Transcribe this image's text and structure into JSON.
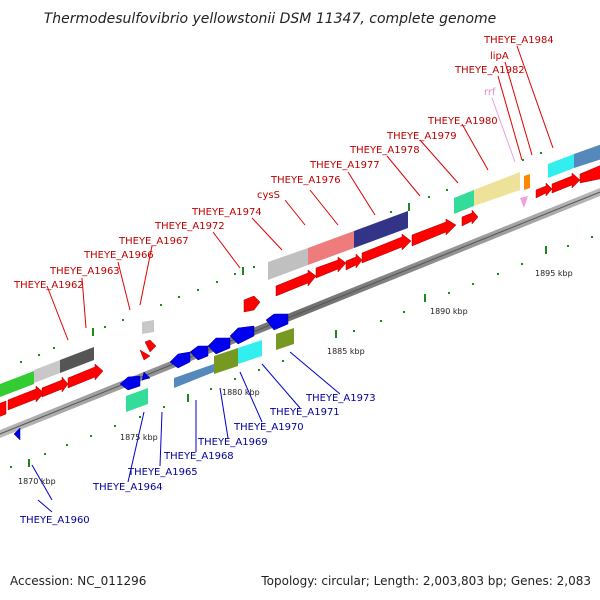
{
  "title": "Thermodesulfovibrio yellowstonii DSM 11347, complete genome",
  "accession_text": "Accession: NC_011296",
  "summary_text": "Topology: circular; Length: 2,003,803 bp; Genes: 2,083",
  "ticks": [
    {
      "label": "1870 kbp"
    },
    {
      "label": "1875 kbp"
    },
    {
      "label": "1880 kbp"
    },
    {
      "label": "1885 kbp"
    },
    {
      "label": "1890 kbp"
    },
    {
      "label": "1895 kbp"
    }
  ],
  "top_labels": [
    "THEYE_A1962",
    "THEYE_A1963",
    "THEYE_A1966",
    "THEYE_A1967",
    "THEYE_A1972",
    "THEYE_A1974",
    "cysS",
    "THEYE_A1976",
    "THEYE_A1977",
    "THEYE_A1978",
    "THEYE_A1979",
    "THEYE_A1980",
    "rrf",
    "THEYE_A1982",
    "lipA",
    "THEYE_A1984"
  ],
  "bottom_labels": [
    "THEYE_A1960",
    "THEYE_A1964",
    "THEYE_A1965",
    "THEYE_A1968",
    "THEYE_A1969",
    "THEYE_A1970",
    "THEYE_A1971",
    "THEYE_A1973"
  ],
  "colors": {
    "forward_gene": "#ff0000",
    "reverse_gene": "#0000ee",
    "backbone": "#888888",
    "tick_dots": "#1a8a1a",
    "label_top": "#c00000",
    "label_bottom": "#000099",
    "label_rna": "#e08cd0"
  }
}
